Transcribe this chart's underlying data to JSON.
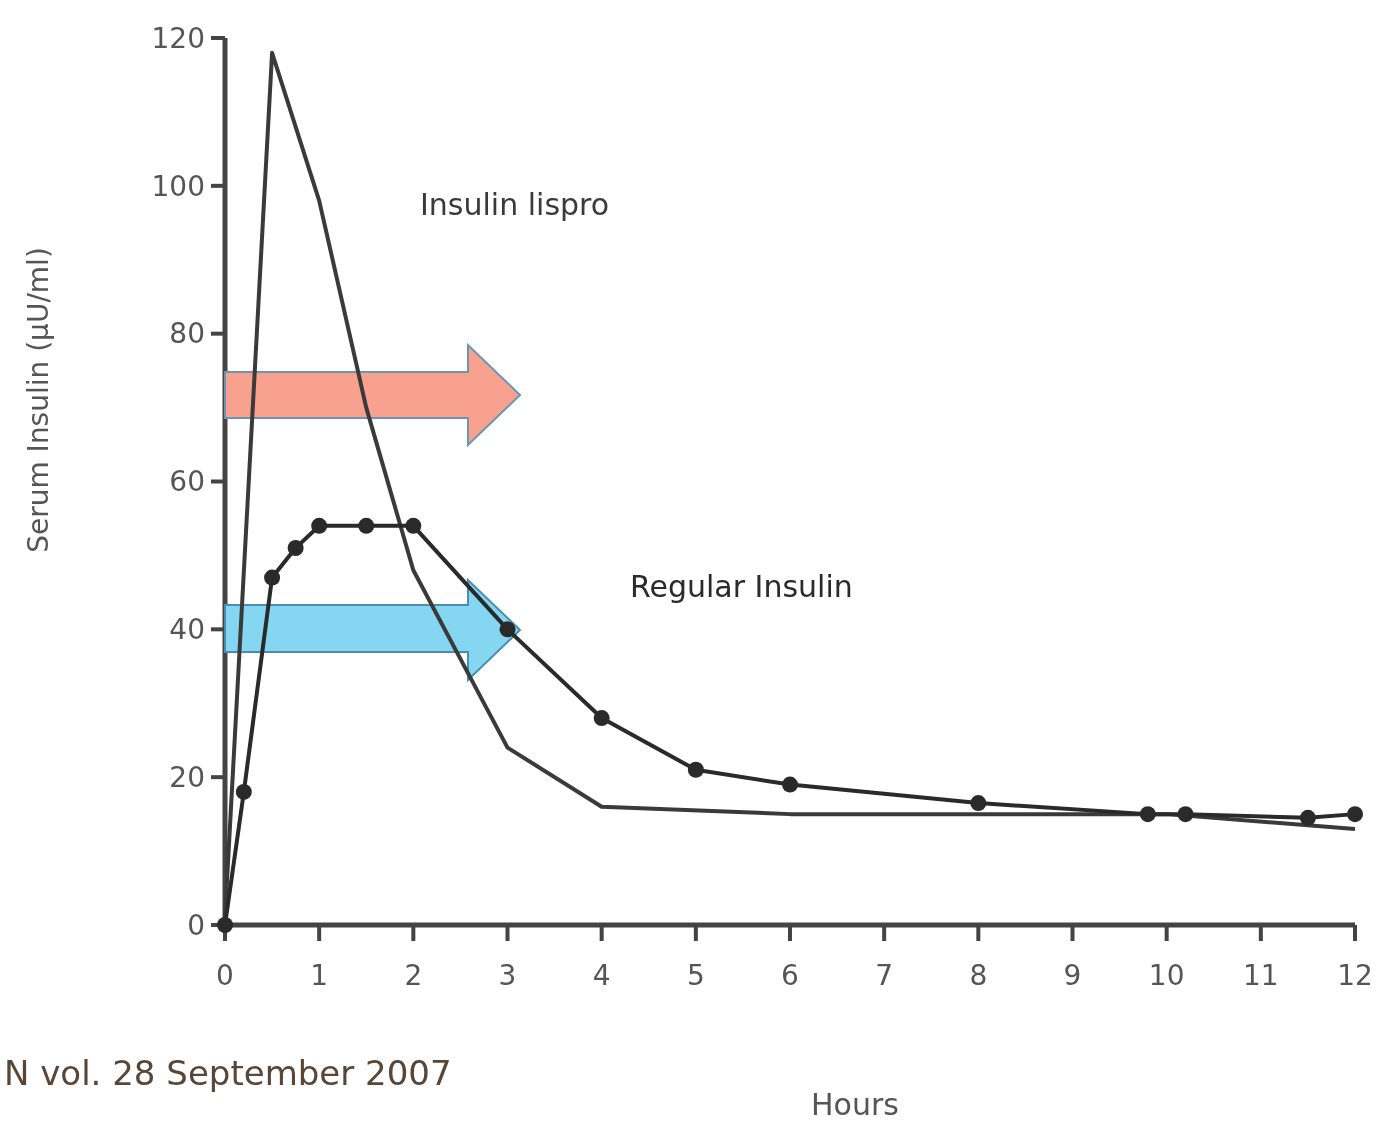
{
  "chart_data": {
    "type": "line",
    "xlabel": "Hours",
    "ylabel": "Serum Insulin (μU/ml)",
    "xlim": [
      0,
      12
    ],
    "xticks": [
      0,
      1,
      2,
      3,
      4,
      5,
      6,
      7,
      8,
      9,
      10,
      11,
      12
    ],
    "ylim": [
      0,
      120
    ],
    "yticks": [
      0,
      20,
      40,
      60,
      80,
      100,
      120
    ],
    "grid": false,
    "series": [
      {
        "name": "Insulin lispro",
        "color": "#3a3a3a",
        "marker": "none",
        "x": [
          0,
          0.5,
          1,
          1.5,
          2,
          2.5,
          3,
          4,
          6,
          8,
          10,
          12
        ],
        "values": [
          1,
          118,
          98,
          70,
          48,
          36,
          24,
          16,
          15,
          15,
          15,
          13
        ]
      },
      {
        "name": "Regular Insulin",
        "color": "#2a2a2a",
        "marker": "circle",
        "x": [
          0,
          0.2,
          0.5,
          0.75,
          1,
          1.5,
          2,
          3,
          4,
          5,
          6,
          8,
          9.8,
          10.2,
          11.5,
          12
        ],
        "values": [
          0,
          18,
          47,
          51,
          54,
          54,
          54,
          40,
          28,
          21,
          19,
          16.5,
          15,
          15,
          14.5,
          15
        ]
      }
    ],
    "annotations": [
      "N vol. 28 September 2007"
    ]
  }
}
